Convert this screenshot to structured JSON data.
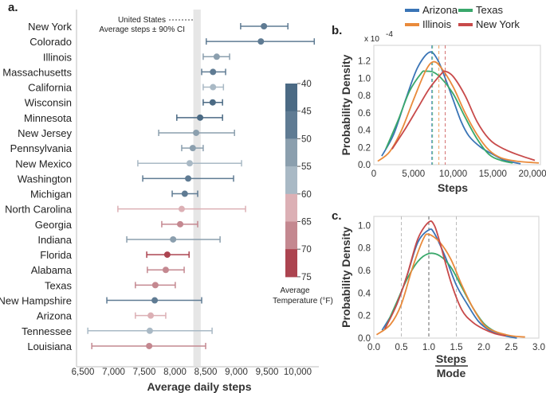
{
  "chart_data": [
    {
      "panel": "a.",
      "type": "errorbar",
      "xlabel": "Average daily steps",
      "xlim": [
        6500,
        10250
      ],
      "xticks": [
        "6,500",
        "7,000",
        "7,500",
        "8,000",
        "8,500",
        "9,000",
        "9,500",
        "10,000"
      ],
      "xtick_values": [
        6500,
        7000,
        7500,
        8000,
        8500,
        9000,
        9500,
        10000
      ],
      "us_band": {
        "low": 8300,
        "high": 8420,
        "label_1": "United States",
        "label_2": "Average steps ± 90% CI",
        "color": "#e6e6e6"
      },
      "rows": [
        {
          "state": "New York",
          "mean": 9450,
          "low": 9070,
          "high": 9840,
          "temp": 47
        },
        {
          "state": "Colorado",
          "mean": 9400,
          "low": 8510,
          "high": 10270,
          "temp": 48
        },
        {
          "state": "Illinois",
          "mean": 8680,
          "low": 8460,
          "high": 8890,
          "temp": 53
        },
        {
          "state": "Massachusetts",
          "mean": 8620,
          "low": 8435,
          "high": 8825,
          "temp": 48
        },
        {
          "state": "California",
          "mean": 8620,
          "low": 8460,
          "high": 8790,
          "temp": 58
        },
        {
          "state": "Wisconsin",
          "mean": 8615,
          "low": 8460,
          "high": 8775,
          "temp": 43
        },
        {
          "state": "Minnesota",
          "mean": 8410,
          "low": 8030,
          "high": 8775,
          "temp": 42
        },
        {
          "state": "New Jersey",
          "mean": 8345,
          "low": 7735,
          "high": 8970,
          "temp": 53
        },
        {
          "state": "Pennsylvania",
          "mean": 8290,
          "low": 8110,
          "high": 8460,
          "temp": 53
        },
        {
          "state": "New Mexico",
          "mean": 8240,
          "low": 7395,
          "high": 9085,
          "temp": 57
        },
        {
          "state": "Washington",
          "mean": 8215,
          "low": 7475,
          "high": 8955,
          "temp": 48
        },
        {
          "state": "Michigan",
          "mean": 8160,
          "low": 7955,
          "high": 8370,
          "temp": 47
        },
        {
          "state": "North Carolina",
          "mean": 8110,
          "low": 7070,
          "high": 9150,
          "temp": 62
        },
        {
          "state": "Georgia",
          "mean": 8085,
          "low": 7785,
          "high": 8370,
          "temp": 67
        },
        {
          "state": "Indiana",
          "mean": 7970,
          "low": 7215,
          "high": 8735,
          "temp": 54
        },
        {
          "state": "Florida",
          "mean": 7875,
          "low": 7540,
          "high": 8230,
          "temp": 72
        },
        {
          "state": "Alabama",
          "mean": 7850,
          "low": 7550,
          "high": 8150,
          "temp": 66
        },
        {
          "state": "Texas",
          "mean": 7680,
          "low": 7355,
          "high": 8005,
          "temp": 67
        },
        {
          "state": "New Hampshire",
          "mean": 7670,
          "low": 6890,
          "high": 8435,
          "temp": 46
        },
        {
          "state": "Arizona",
          "mean": 7605,
          "low": 7355,
          "high": 7850,
          "temp": 62
        },
        {
          "state": "Tennessee",
          "mean": 7590,
          "low": 6580,
          "high": 8605,
          "temp": 58
        },
        {
          "state": "Louisiana",
          "mean": 7580,
          "low": 6645,
          "high": 8500,
          "temp": 68
        }
      ],
      "colorbar": {
        "title_1": "Average",
        "title_2": "Temperature (°F)",
        "ticks": [
          "40",
          "45",
          "50",
          "55",
          "60",
          "65",
          "70",
          "75"
        ],
        "bins": [
          {
            "from": 40,
            "to": 45,
            "color": "#4b6a84"
          },
          {
            "from": 45,
            "to": 50,
            "color": "#5f7b93"
          },
          {
            "from": 50,
            "to": 55,
            "color": "#8b9fae"
          },
          {
            "from": 55,
            "to": 60,
            "color": "#a9b9c5"
          },
          {
            "from": 60,
            "to": 65,
            "color": "#dcb0b5"
          },
          {
            "from": 65,
            "to": 70,
            "color": "#c48890"
          },
          {
            "from": 70,
            "to": 75,
            "color": "#ac4450"
          }
        ]
      }
    },
    {
      "panel": "b.",
      "type": "line",
      "xlabel": "Steps",
      "ylabel": "Probability Density",
      "y_multiplier": "x 10",
      "y_exponent": "-4",
      "xlim": [
        0,
        21000
      ],
      "ylim": [
        0,
        1.38
      ],
      "xticks": [
        "0",
        "5,000",
        "10,000",
        "15,000",
        "20,000"
      ],
      "xtick_values": [
        0,
        5000,
        10000,
        15000,
        20000
      ],
      "yticks": [
        "0.0",
        "0.2",
        "0.4",
        "0.6",
        "0.8",
        "1.0",
        "1.2"
      ],
      "ytick_values": [
        0,
        0.2,
        0.4,
        0.6,
        0.8,
        1.0,
        1.2
      ],
      "legend": "top",
      "series": [
        {
          "name": "Arizona",
          "color": "#3a74b6",
          "mode": 7300,
          "points": [
            [
              1000,
              0.1
            ],
            [
              2500,
              0.35
            ],
            [
              4000,
              0.75
            ],
            [
              5500,
              1.12
            ],
            [
              7000,
              1.3
            ],
            [
              8000,
              1.22
            ],
            [
              9000,
              1.0
            ],
            [
              10000,
              0.75
            ],
            [
              11000,
              0.5
            ],
            [
              12000,
              0.33
            ],
            [
              13500,
              0.2
            ],
            [
              15000,
              0.12
            ],
            [
              16500,
              0.05
            ],
            [
              18500,
              0.01
            ]
          ]
        },
        {
          "name": "Texas",
          "color": "#3aa86b",
          "mode": 7400,
          "points": [
            [
              1500,
              0.18
            ],
            [
              3000,
              0.5
            ],
            [
              4500,
              0.85
            ],
            [
              6000,
              1.06
            ],
            [
              6500,
              1.08
            ],
            [
              7500,
              1.07
            ],
            [
              8500,
              1.0
            ],
            [
              10000,
              0.82
            ],
            [
              11500,
              0.55
            ],
            [
              13000,
              0.3
            ],
            [
              14500,
              0.12
            ],
            [
              16000,
              0.05
            ],
            [
              17500,
              0.02
            ]
          ]
        },
        {
          "name": "Illinois",
          "color": "#e98a3b",
          "mode": 8200,
          "points": [
            [
              500,
              0.04
            ],
            [
              2000,
              0.15
            ],
            [
              3500,
              0.4
            ],
            [
              5000,
              0.75
            ],
            [
              6500,
              1.08
            ],
            [
              7500,
              1.19
            ],
            [
              8500,
              1.12
            ],
            [
              10000,
              0.9
            ],
            [
              11500,
              0.6
            ],
            [
              13000,
              0.35
            ],
            [
              14500,
              0.17
            ],
            [
              16000,
              0.08
            ],
            [
              18000,
              0.04
            ],
            [
              20800,
              0.02
            ]
          ]
        },
        {
          "name": "New York",
          "color": "#c84a4a",
          "mode": 9000,
          "points": [
            [
              2300,
              0.18
            ],
            [
              4000,
              0.42
            ],
            [
              5500,
              0.65
            ],
            [
              7000,
              0.88
            ],
            [
              8500,
              1.05
            ],
            [
              9000,
              1.08
            ],
            [
              10000,
              1.02
            ],
            [
              11500,
              0.8
            ],
            [
              13000,
              0.5
            ],
            [
              14500,
              0.3
            ],
            [
              16000,
              0.2
            ],
            [
              18000,
              0.12
            ],
            [
              20300,
              0.05
            ]
          ]
        }
      ]
    },
    {
      "panel": "c.",
      "type": "line",
      "xlabel_num": "Steps",
      "xlabel_den": "Mode",
      "ylabel": "Probability Density",
      "xlim": [
        0,
        3.0
      ],
      "ylim": [
        0,
        1.08
      ],
      "xticks": [
        "0.0",
        "0.5",
        "1.0",
        "1.5",
        "2.0",
        "2.5",
        "3.0"
      ],
      "xtick_values": [
        0,
        0.5,
        1.0,
        1.5,
        2.0,
        2.5,
        3.0
      ],
      "yticks": [
        "0.0",
        "0.2",
        "0.4",
        "0.6",
        "0.8",
        "1.0"
      ],
      "ytick_values": [
        0,
        0.2,
        0.4,
        0.6,
        0.8,
        1.0
      ],
      "vlines": [
        0.5,
        1.0,
        1.5
      ],
      "series": [
        {
          "name": "Arizona",
          "color": "#3a74b6",
          "points": [
            [
              0.15,
              0.07
            ],
            [
              0.4,
              0.28
            ],
            [
              0.6,
              0.55
            ],
            [
              0.8,
              0.85
            ],
            [
              1.0,
              0.96
            ],
            [
              1.1,
              0.93
            ],
            [
              1.3,
              0.72
            ],
            [
              1.5,
              0.47
            ],
            [
              1.7,
              0.3
            ],
            [
              1.9,
              0.15
            ],
            [
              2.1,
              0.07
            ],
            [
              2.3,
              0.03
            ],
            [
              2.6,
              0.0
            ]
          ]
        },
        {
          "name": "Texas",
          "color": "#3aa86b",
          "points": [
            [
              0.2,
              0.08
            ],
            [
              0.4,
              0.3
            ],
            [
              0.6,
              0.52
            ],
            [
              0.8,
              0.68
            ],
            [
              1.0,
              0.75
            ],
            [
              1.2,
              0.73
            ],
            [
              1.4,
              0.63
            ],
            [
              1.6,
              0.45
            ],
            [
              1.8,
              0.27
            ],
            [
              2.0,
              0.13
            ],
            [
              2.2,
              0.06
            ],
            [
              2.4,
              0.03
            ]
          ]
        },
        {
          "name": "Illinois",
          "color": "#e98a3b",
          "points": [
            [
              0.05,
              0.03
            ],
            [
              0.3,
              0.12
            ],
            [
              0.5,
              0.3
            ],
            [
              0.7,
              0.62
            ],
            [
              0.9,
              0.88
            ],
            [
              1.0,
              0.92
            ],
            [
              1.2,
              0.85
            ],
            [
              1.4,
              0.7
            ],
            [
              1.6,
              0.47
            ],
            [
              1.8,
              0.27
            ],
            [
              2.0,
              0.12
            ],
            [
              2.2,
              0.06
            ],
            [
              2.5,
              0.02
            ],
            [
              2.75,
              0.01
            ]
          ]
        },
        {
          "name": "New York",
          "color": "#c84a4a",
          "points": [
            [
              0.2,
              0.08
            ],
            [
              0.4,
              0.28
            ],
            [
              0.6,
              0.55
            ],
            [
              0.8,
              0.88
            ],
            [
              1.0,
              1.03
            ],
            [
              1.1,
              1.0
            ],
            [
              1.2,
              0.85
            ],
            [
              1.4,
              0.5
            ],
            [
              1.6,
              0.25
            ],
            [
              1.8,
              0.14
            ],
            [
              2.0,
              0.08
            ],
            [
              2.2,
              0.04
            ],
            [
              2.4,
              0.02
            ]
          ]
        }
      ]
    }
  ]
}
